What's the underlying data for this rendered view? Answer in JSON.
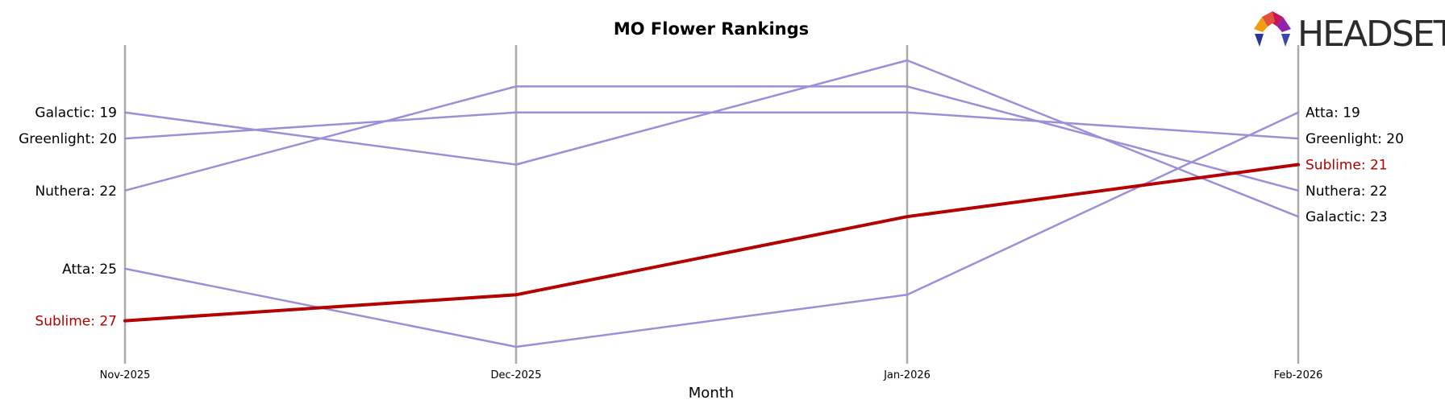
{
  "chart_data": {
    "type": "line",
    "title": "MO Flower Rankings",
    "xlabel": "Month",
    "ylabel": "",
    "categories": [
      "Nov-2025",
      "Dec-2025",
      "Jan-2026",
      "Feb-2026"
    ],
    "y_inverted": true,
    "ylim": [
      17.5,
      28.5
    ],
    "grid": false,
    "series": [
      {
        "name": "Galactic",
        "values": [
          19,
          21,
          17,
          23
        ],
        "color": "#9B8FD9",
        "highlight": false
      },
      {
        "name": "Greenlight",
        "values": [
          20,
          19,
          19,
          20
        ],
        "color": "#9B8FD9",
        "highlight": false
      },
      {
        "name": "Nuthera",
        "values": [
          22,
          18,
          18,
          22
        ],
        "color": "#9B8FD9",
        "highlight": false
      },
      {
        "name": "Atta",
        "values": [
          25,
          28,
          26,
          19
        ],
        "color": "#9B8FD9",
        "highlight": false
      },
      {
        "name": "Sublime",
        "values": [
          27,
          26,
          23,
          21
        ],
        "color": "#B30000",
        "highlight": true
      }
    ]
  },
  "brand": {
    "logo_text": "HEADSET",
    "logo_color": "#2b2b2b"
  },
  "colors": {
    "vertical_line": "#aaaaaa",
    "default_label": "#000000",
    "highlight_label": "#B30000"
  }
}
